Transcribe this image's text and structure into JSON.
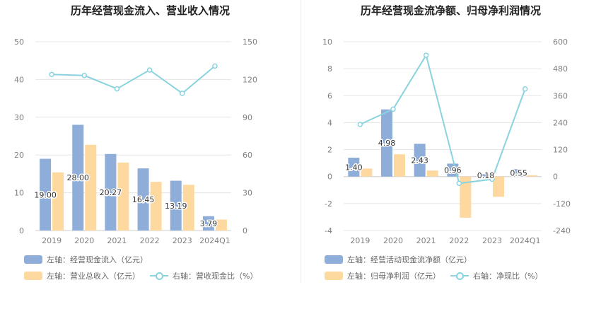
{
  "colors": {
    "blue": "#8eadd8",
    "orange": "#fdd9a0",
    "line": "#8ad3de",
    "grid": "#e5e5e5",
    "axis": "#7f7f7f"
  },
  "chart_data": [
    {
      "type": "bar",
      "title": "历年经营现金流入、营业收入情况",
      "categories": [
        "2019",
        "2020",
        "2021",
        "2022",
        "2023",
        "2024Q1"
      ],
      "left_axis": {
        "ticks": [
          "0",
          "10",
          "20",
          "30",
          "40",
          "50"
        ],
        "range": [
          0,
          50
        ]
      },
      "right_axis": {
        "ticks": [
          "0",
          "30",
          "60",
          "90",
          "120",
          "150"
        ],
        "range": [
          0,
          150
        ]
      },
      "grid": true,
      "series": [
        {
          "name": "左轴：经营现金流入（亿元）",
          "type": "bar",
          "axis": "left",
          "color": "#8eadd8",
          "values": [
            19.0,
            28.0,
            20.27,
            16.45,
            13.19,
            3.79
          ],
          "labels": [
            "19.00",
            "28.00",
            "20.27",
            "16.45",
            "13.19",
            "3.79"
          ]
        },
        {
          "name": "左轴：营业总收入（亿元）",
          "type": "bar",
          "axis": "left",
          "color": "#fdd9a0",
          "values": [
            15.4,
            22.7,
            18.0,
            12.9,
            12.1,
            2.9
          ]
        },
        {
          "name": "右轴：营收现金比（%）",
          "type": "line",
          "axis": "right",
          "color": "#8ad3de",
          "values": [
            124.0,
            123.2,
            112.6,
            127.5,
            109.0,
            130.7
          ]
        }
      ],
      "legend_position": "bottom-left"
    },
    {
      "type": "bar",
      "title": "历年经营现金流净额、归母净利润情况",
      "categories": [
        "2019",
        "2020",
        "2021",
        "2022",
        "2023",
        "2024Q1"
      ],
      "left_axis": {
        "ticks": [
          "-4",
          "-2",
          "0",
          "2",
          "4",
          "6",
          "8",
          "10"
        ],
        "range": [
          -4,
          10
        ]
      },
      "right_axis": {
        "ticks": [
          "-240",
          "-120",
          "0",
          "120",
          "240",
          "360",
          "480",
          "600"
        ],
        "range": [
          -240,
          600
        ]
      },
      "grid": true,
      "series": [
        {
          "name": "左轴：经营活动现金流净额（亿元）",
          "type": "bar",
          "axis": "left",
          "color": "#8eadd8",
          "values": [
            1.4,
            4.98,
            2.43,
            0.96,
            0.18,
            0.55
          ],
          "labels": [
            "1.40",
            "4.98",
            "2.43",
            "0.96",
            "0.18",
            "0.55"
          ]
        },
        {
          "name": "左轴：归母净利润（亿元）",
          "type": "bar",
          "axis": "left",
          "color": "#fdd9a0",
          "values": [
            0.6,
            1.65,
            0.45,
            -3.05,
            -1.5,
            0.1
          ]
        },
        {
          "name": "右轴：净现比（%）",
          "type": "line",
          "axis": "right",
          "color": "#8ad3de",
          "values": [
            232,
            300,
            540,
            -30,
            -12,
            390
          ]
        }
      ],
      "legend_position": "bottom-left"
    }
  ]
}
